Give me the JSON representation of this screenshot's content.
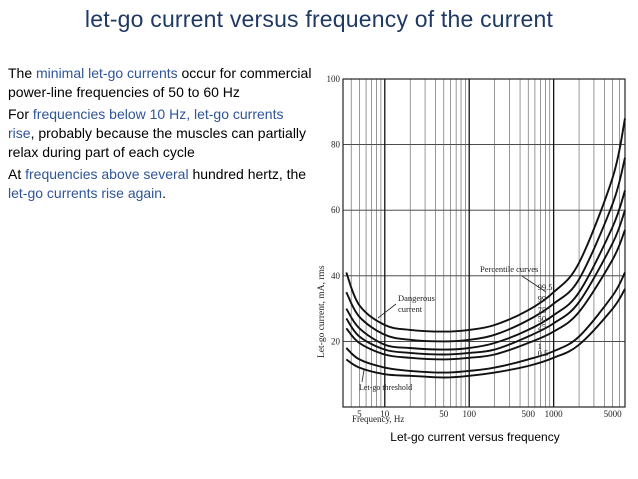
{
  "slide": {
    "title": "let-go current versus frequency of the current"
  },
  "bullets": [
    [
      {
        "t": "The ",
        "hl": false
      },
      {
        "t": "minimal let-go currents",
        "hl": true
      },
      {
        "t": " occur for commercial power-line frequencies of 50 to 60 Hz",
        "hl": false
      }
    ],
    [
      {
        "t": "For ",
        "hl": false
      },
      {
        "t": "frequencies below 10 Hz, let-go currents rise",
        "hl": true
      },
      {
        "t": ", probably because the muscles can partially relax during part of each cycle",
        "hl": false
      }
    ],
    [
      {
        "t": "At ",
        "hl": false
      },
      {
        "t": "frequencies above several",
        "hl": true
      },
      {
        "t": " hundred hertz, the ",
        "hl": false
      },
      {
        "t": "let-go currents rise again",
        "hl": true
      },
      {
        "t": ".",
        "hl": false
      }
    ]
  ],
  "figure": {
    "caption": "Let-go current versus frequency",
    "ylabel": "Let-go current, mA, rms",
    "xlabel": "Frequency, Hz",
    "y_ticks": [
      "20",
      "40",
      "60",
      "80",
      "100"
    ],
    "x_ticks": [
      "5",
      "10",
      "50",
      "100",
      "500",
      "1000",
      "5000"
    ],
    "annotations": {
      "percentile_curves": "Percentile curves",
      "dangerous_current_1": "Dangerous",
      "dangerous_current_2": "current",
      "letgo_threshold": "Let-go threshold"
    }
  },
  "chart_data": {
    "type": "line",
    "xscale": "log",
    "ylabel": "Let-go current, mA, rms",
    "xlabel": "Frequency, Hz",
    "xlim": [
      3.2,
      7000
    ],
    "ylim": [
      0,
      100
    ],
    "x": [
      3.5,
      5,
      10,
      20,
      50,
      100,
      200,
      500,
      1000,
      2000,
      5000,
      7000
    ],
    "series": [
      {
        "name": "99.5",
        "values": [
          41,
          31,
          25,
          23.5,
          23,
          23.5,
          25,
          29.5,
          35,
          44,
          70,
          88
        ]
      },
      {
        "name": "99",
        "values": [
          35,
          27.5,
          22,
          20.5,
          20,
          20.5,
          22,
          26.5,
          31.5,
          39,
          62,
          76
        ]
      },
      {
        "name": "75",
        "values": [
          30,
          24,
          19,
          18,
          17.5,
          18,
          19.5,
          23.5,
          28,
          35,
          55,
          66
        ]
      },
      {
        "name": "50",
        "values": [
          27,
          21.5,
          17.5,
          16.5,
          16,
          16.5,
          17.5,
          21.5,
          25.5,
          32,
          50,
          60
        ]
      },
      {
        "name": "25",
        "values": [
          24,
          19.5,
          16,
          15,
          14.5,
          15,
          16,
          19.5,
          23,
          29,
          45,
          54
        ]
      },
      {
        "name": "1",
        "values": [
          18,
          14.5,
          12,
          11,
          10.5,
          11,
          12,
          14.5,
          17,
          21.5,
          34,
          41
        ]
      },
      {
        "name": "0.5",
        "values": [
          14.5,
          12,
          10,
          9.5,
          9,
          9.5,
          10.5,
          12.5,
          15,
          19,
          30,
          36
        ]
      }
    ]
  }
}
